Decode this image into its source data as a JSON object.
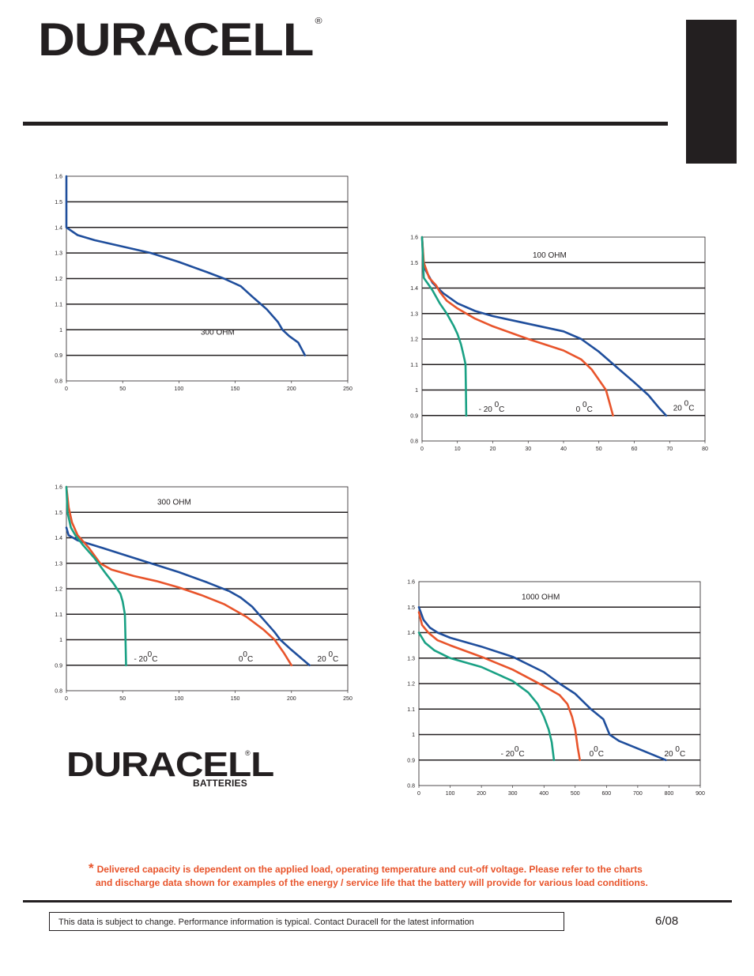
{
  "header": {
    "brand": "DURACELL",
    "registered": "®"
  },
  "charts": [
    {
      "id": "chart-top-left",
      "type": "line",
      "x_ticks": [
        "0",
        "50",
        "100",
        "150",
        "200",
        "250"
      ],
      "y_ticks": [
        "0.8",
        "0.9",
        "1",
        "1.1",
        "1.2",
        "1.3",
        "1.4",
        "1.5",
        "1.6"
      ],
      "xlim": [
        0,
        250
      ],
      "ylim": [
        0.8,
        1.6
      ],
      "annotation": "300 OHM",
      "series": [
        {
          "color": "#1f4e9c",
          "points": [
            [
              0,
              1.6
            ],
            [
              0,
              1.5
            ],
            [
              0,
              1.4
            ],
            [
              10,
              1.37
            ],
            [
              25,
              1.35
            ],
            [
              50,
              1.325
            ],
            [
              75,
              1.3
            ],
            [
              100,
              1.265
            ],
            [
              125,
              1.225
            ],
            [
              140,
              1.2
            ],
            [
              155,
              1.17
            ],
            [
              165,
              1.13
            ],
            [
              178,
              1.08
            ],
            [
              188,
              1.03
            ],
            [
              192,
              1.0
            ],
            [
              198,
              0.975
            ],
            [
              206,
              0.95
            ],
            [
              212,
              0.9
            ]
          ]
        }
      ],
      "labels": []
    },
    {
      "id": "chart-top-right",
      "type": "line",
      "x_ticks": [
        "0",
        "10",
        "20",
        "30",
        "40",
        "50",
        "60",
        "70",
        "80"
      ],
      "y_ticks": [
        "0.8",
        "0.9",
        "1",
        "1.1",
        "1.2",
        "1.3",
        "1.4",
        "1.5",
        "1.6"
      ],
      "xlim": [
        0,
        80
      ],
      "ylim": [
        0.8,
        1.6
      ],
      "annotation": "100 OHM",
      "series": [
        {
          "color": "#1f4e9c",
          "points": [
            [
              0,
              1.6
            ],
            [
              0.4,
              1.5
            ],
            [
              1,
              1.47
            ],
            [
              3,
              1.42
            ],
            [
              6,
              1.38
            ],
            [
              10,
              1.34
            ],
            [
              15,
              1.31
            ],
            [
              20,
              1.29
            ],
            [
              30,
              1.26
            ],
            [
              40,
              1.23
            ],
            [
              45,
              1.2
            ],
            [
              50,
              1.15
            ],
            [
              55,
              1.09
            ],
            [
              60,
              1.03
            ],
            [
              64,
              0.98
            ],
            [
              67,
              0.93
            ],
            [
              69,
              0.9
            ]
          ]
        },
        {
          "color": "#e8542b",
          "points": [
            [
              0,
              1.6
            ],
            [
              0.5,
              1.5
            ],
            [
              2,
              1.44
            ],
            [
              4,
              1.41
            ],
            [
              5,
              1.385
            ],
            [
              7,
              1.35
            ],
            [
              10,
              1.32
            ],
            [
              15,
              1.28
            ],
            [
              20,
              1.25
            ],
            [
              30,
              1.2
            ],
            [
              40,
              1.155
            ],
            [
              45,
              1.12
            ],
            [
              48,
              1.08
            ],
            [
              50,
              1.04
            ],
            [
              52,
              1.0
            ],
            [
              53,
              0.95
            ],
            [
              54,
              0.9
            ]
          ]
        },
        {
          "color": "#1aa184",
          "points": [
            [
              0,
              1.6
            ],
            [
              0.3,
              1.5
            ],
            [
              0.5,
              1.44
            ],
            [
              2,
              1.41
            ],
            [
              3,
              1.39
            ],
            [
              5,
              1.34
            ],
            [
              7,
              1.3
            ],
            [
              9,
              1.25
            ],
            [
              10,
              1.22
            ],
            [
              11,
              1.18
            ],
            [
              11.5,
              1.15
            ],
            [
              12,
              1.12
            ],
            [
              12.3,
              1.1
            ],
            [
              12.4,
              1.0
            ],
            [
              12.5,
              0.9
            ]
          ]
        }
      ],
      "labels": [
        {
          "text": "- 20 ",
          "sup": "0",
          "unit": "C",
          "x": 16,
          "y": 0.93
        },
        {
          "text": "0 ",
          "sup": "0",
          "unit": "C",
          "x": 43.5,
          "y": 0.93
        },
        {
          "text": "20 ",
          "sup": "0",
          "unit": "C",
          "x": 71,
          "y": 0.935
        }
      ]
    },
    {
      "id": "chart-bottom-left",
      "type": "line",
      "x_ticks": [
        "0",
        "50",
        "100",
        "150",
        "200",
        "250"
      ],
      "y_ticks": [
        "0.8",
        "0.9",
        "1",
        "1.1",
        "1.2",
        "1.3",
        "1.4",
        "1.5",
        "1.6"
      ],
      "xlim": [
        0,
        250
      ],
      "ylim": [
        0.8,
        1.6
      ],
      "annotation": "300 OHM",
      "series": [
        {
          "color": "#1f4e9c",
          "points": [
            [
              0,
              1.44
            ],
            [
              2,
              1.41
            ],
            [
              10,
              1.39
            ],
            [
              25,
              1.37
            ],
            [
              50,
              1.335
            ],
            [
              75,
              1.3
            ],
            [
              100,
              1.265
            ],
            [
              125,
              1.225
            ],
            [
              145,
              1.19
            ],
            [
              155,
              1.165
            ],
            [
              165,
              1.13
            ],
            [
              175,
              1.08
            ],
            [
              185,
              1.03
            ],
            [
              190,
              1.0
            ],
            [
              200,
              0.96
            ],
            [
              216,
              0.9
            ]
          ]
        },
        {
          "color": "#e8542b",
          "points": [
            [
              0,
              1.6
            ],
            [
              2,
              1.52
            ],
            [
              5,
              1.46
            ],
            [
              10,
              1.41
            ],
            [
              20,
              1.36
            ],
            [
              30,
              1.3
            ],
            [
              40,
              1.275
            ],
            [
              60,
              1.25
            ],
            [
              80,
              1.23
            ],
            [
              100,
              1.205
            ],
            [
              120,
              1.175
            ],
            [
              140,
              1.14
            ],
            [
              160,
              1.09
            ],
            [
              175,
              1.04
            ],
            [
              185,
              1.0
            ],
            [
              193,
              0.95
            ],
            [
              200,
              0.9
            ]
          ]
        },
        {
          "color": "#1aa184",
          "points": [
            [
              0,
              1.6
            ],
            [
              1,
              1.5
            ],
            [
              4,
              1.44
            ],
            [
              8,
              1.41
            ],
            [
              15,
              1.37
            ],
            [
              25,
              1.32
            ],
            [
              35,
              1.26
            ],
            [
              42,
              1.22
            ],
            [
              48,
              1.18
            ],
            [
              50,
              1.15
            ],
            [
              52,
              1.1
            ],
            [
              52.5,
              1.0
            ],
            [
              53,
              0.9
            ]
          ]
        }
      ],
      "labels": [
        {
          "text": "- 20",
          "sup": "0",
          "unit": "C",
          "x": 60,
          "y": 0.93
        },
        {
          "text": "0",
          "sup": "0",
          "unit": "C",
          "x": 153,
          "y": 0.93
        },
        {
          "text": "20 ",
          "sup": "0",
          "unit": "C",
          "x": 223,
          "y": 0.93
        }
      ]
    },
    {
      "id": "chart-bottom-right",
      "type": "line",
      "x_ticks": [
        "0",
        "100",
        "200",
        "300",
        "400",
        "500",
        "600",
        "700",
        "800",
        "900"
      ],
      "y_ticks": [
        "0.8",
        "0.9",
        "1",
        "1.1",
        "1.2",
        "1.3",
        "1.4",
        "1.5",
        "1.6"
      ],
      "xlim": [
        0,
        900
      ],
      "ylim": [
        0.8,
        1.6
      ],
      "annotation": "1000 OHM",
      "series": [
        {
          "color": "#1f4e9c",
          "points": [
            [
              0,
              1.5
            ],
            [
              15,
              1.45
            ],
            [
              35,
              1.42
            ],
            [
              60,
              1.4
            ],
            [
              100,
              1.38
            ],
            [
              200,
              1.345
            ],
            [
              300,
              1.305
            ],
            [
              400,
              1.245
            ],
            [
              450,
              1.2
            ],
            [
              500,
              1.16
            ],
            [
              550,
              1.1
            ],
            [
              590,
              1.06
            ],
            [
              610,
              1.0
            ],
            [
              640,
              0.975
            ],
            [
              700,
              0.945
            ],
            [
              750,
              0.92
            ],
            [
              790,
              0.9
            ]
          ]
        },
        {
          "color": "#e8542b",
          "points": [
            [
              0,
              1.48
            ],
            [
              10,
              1.43
            ],
            [
              30,
              1.4
            ],
            [
              60,
              1.37
            ],
            [
              100,
              1.35
            ],
            [
              200,
              1.305
            ],
            [
              300,
              1.255
            ],
            [
              400,
              1.19
            ],
            [
              450,
              1.155
            ],
            [
              475,
              1.12
            ],
            [
              490,
              1.07
            ],
            [
              500,
              1.02
            ],
            [
              508,
              0.95
            ],
            [
              515,
              0.9
            ]
          ]
        },
        {
          "color": "#1aa184",
          "points": [
            [
              0,
              1.4
            ],
            [
              20,
              1.36
            ],
            [
              50,
              1.33
            ],
            [
              100,
              1.3
            ],
            [
              200,
              1.265
            ],
            [
              300,
              1.21
            ],
            [
              350,
              1.165
            ],
            [
              380,
              1.12
            ],
            [
              400,
              1.07
            ],
            [
              415,
              1.02
            ],
            [
              425,
              0.97
            ],
            [
              432,
              0.9
            ]
          ]
        }
      ],
      "labels": [
        {
          "text": "- 20",
          "sup": "0",
          "unit": "C",
          "x": 262,
          "y": 0.93
        },
        {
          "text": "0",
          "sup": "0",
          "unit": "C",
          "x": 545,
          "y": 0.93
        },
        {
          "text": "20 ",
          "sup": "0",
          "unit": "C",
          "x": 785,
          "y": 0.93
        }
      ]
    }
  ],
  "footer_logo": {
    "brand": "DURACELL",
    "sub": "BATTERIES",
    "registered": "®"
  },
  "footnote": {
    "star": "*",
    "line1": "Delivered capacity is dependent on the applied load, operating temperature and cut-off voltage.  Please refer to the charts",
    "line2": "and discharge data shown for examples of the energy / service life that the battery will provide for various load conditions."
  },
  "disclaimer": "This data is subject to change.  Performance information is typical.  Contact Duracell for the latest information",
  "date": "6/08",
  "colors": {
    "ink": "#231f20",
    "blue": "#1f4e9c",
    "orange": "#e8542b",
    "green": "#1aa184"
  }
}
